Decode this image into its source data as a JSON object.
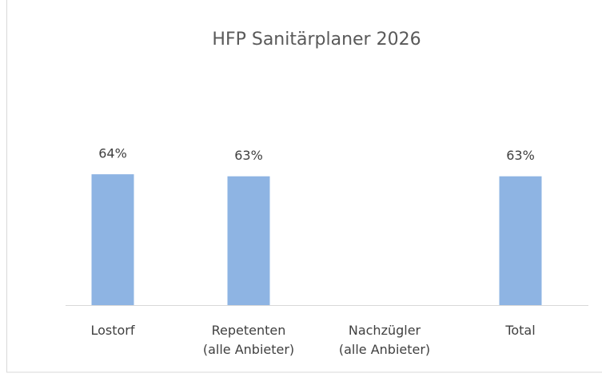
{
  "chart_data": {
    "type": "bar",
    "title": "HFP Sanitärplaner 2026",
    "categories": [
      "Lostorf",
      "Repetenten\n(alle Anbieter)",
      "Nachzügler\n(alle Anbieter)",
      "Total"
    ],
    "values": [
      64,
      63,
      null,
      63
    ],
    "value_labels": [
      "64%",
      "63%",
      null,
      "63%"
    ],
    "color": "#8eb4e3",
    "ylim": [
      0,
      100
    ]
  }
}
